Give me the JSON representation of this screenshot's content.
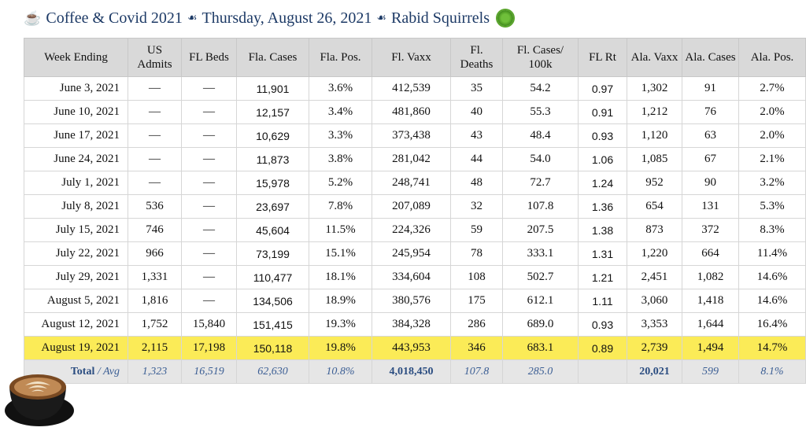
{
  "header": {
    "part1": "Coffee & Covid 2021",
    "part2": "Thursday, August 26, 2021",
    "part3": "Rabid Squirrels",
    "coffee_emoji": "☕",
    "separator": "☙"
  },
  "table": {
    "headers": [
      "Week Ending",
      "US Admits",
      "FL Beds",
      "Fla. Cases",
      "Fla. Pos.",
      "Fl. Vaxx",
      "Fl. Deaths",
      "Fl. Cases/ 100k",
      "FL Rt",
      "Ala. Vaxx",
      "Ala. Cases",
      "Ala. Pos."
    ],
    "rows": [
      [
        "June 3, 2021",
        "—",
        "—",
        "11,901",
        "3.6%",
        "412,539",
        "35",
        "54.2",
        "0.97",
        "1,302",
        "91",
        "2.7%"
      ],
      [
        "June 10, 2021",
        "—",
        "—",
        "12,157",
        "3.4%",
        "481,860",
        "40",
        "55.3",
        "0.91",
        "1,212",
        "76",
        "2.0%"
      ],
      [
        "June 17, 2021",
        "—",
        "—",
        "10,629",
        "3.3%",
        "373,438",
        "43",
        "48.4",
        "0.93",
        "1,120",
        "63",
        "2.0%"
      ],
      [
        "June 24, 2021",
        "—",
        "—",
        "11,873",
        "3.8%",
        "281,042",
        "44",
        "54.0",
        "1.06",
        "1,085",
        "67",
        "2.1%"
      ],
      [
        "July 1, 2021",
        "—",
        "—",
        "15,978",
        "5.2%",
        "248,741",
        "48",
        "72.7",
        "1.24",
        "952",
        "90",
        "3.2%"
      ],
      [
        "July 8, 2021",
        "536",
        "—",
        "23,697",
        "7.8%",
        "207,089",
        "32",
        "107.8",
        "1.36",
        "654",
        "131",
        "5.3%"
      ],
      [
        "July 15, 2021",
        "746",
        "—",
        "45,604",
        "11.5%",
        "224,326",
        "59",
        "207.5",
        "1.38",
        "873",
        "372",
        "8.3%"
      ],
      [
        "July 22, 2021",
        "966",
        "—",
        "73,199",
        "15.1%",
        "245,954",
        "78",
        "333.1",
        "1.31",
        "1,220",
        "664",
        "11.4%"
      ],
      [
        "July 29, 2021",
        "1,331",
        "—",
        "110,477",
        "18.1%",
        "334,604",
        "108",
        "502.7",
        "1.21",
        "2,451",
        "1,082",
        "14.6%"
      ],
      [
        "August 5, 2021",
        "1,816",
        "—",
        "134,506",
        "18.9%",
        "380,576",
        "175",
        "612.1",
        "1.11",
        "3,060",
        "1,418",
        "14.6%"
      ],
      [
        "August 12, 2021",
        "1,752",
        "15,840",
        "151,415",
        "19.3%",
        "384,328",
        "286",
        "689.0",
        "0.93",
        "3,353",
        "1,644",
        "16.4%"
      ],
      [
        "August 19, 2021",
        "2,115",
        "17,198",
        "150,118",
        "19.8%",
        "443,953",
        "346",
        "683.1",
        "0.89",
        "2,739",
        "1,494",
        "14.7%"
      ]
    ],
    "total": {
      "label": "Total",
      "avg_label": "Avg",
      "values": [
        "1,323",
        "16,519",
        "62,630",
        "10.8%",
        "4,018,450",
        "107.8",
        "285.0",
        "",
        "20,021",
        "599",
        "8.1%"
      ]
    }
  },
  "colors": {
    "highlight_row": "#fbeb57",
    "header_bg": "#d9d9d9",
    "title_text": "#1d3a66",
    "total_text": "#3b5e94"
  },
  "icons": [
    "coffee-emoji-icon",
    "fleuron-separator-icon",
    "virus-icon",
    "latte-cup-icon"
  ]
}
